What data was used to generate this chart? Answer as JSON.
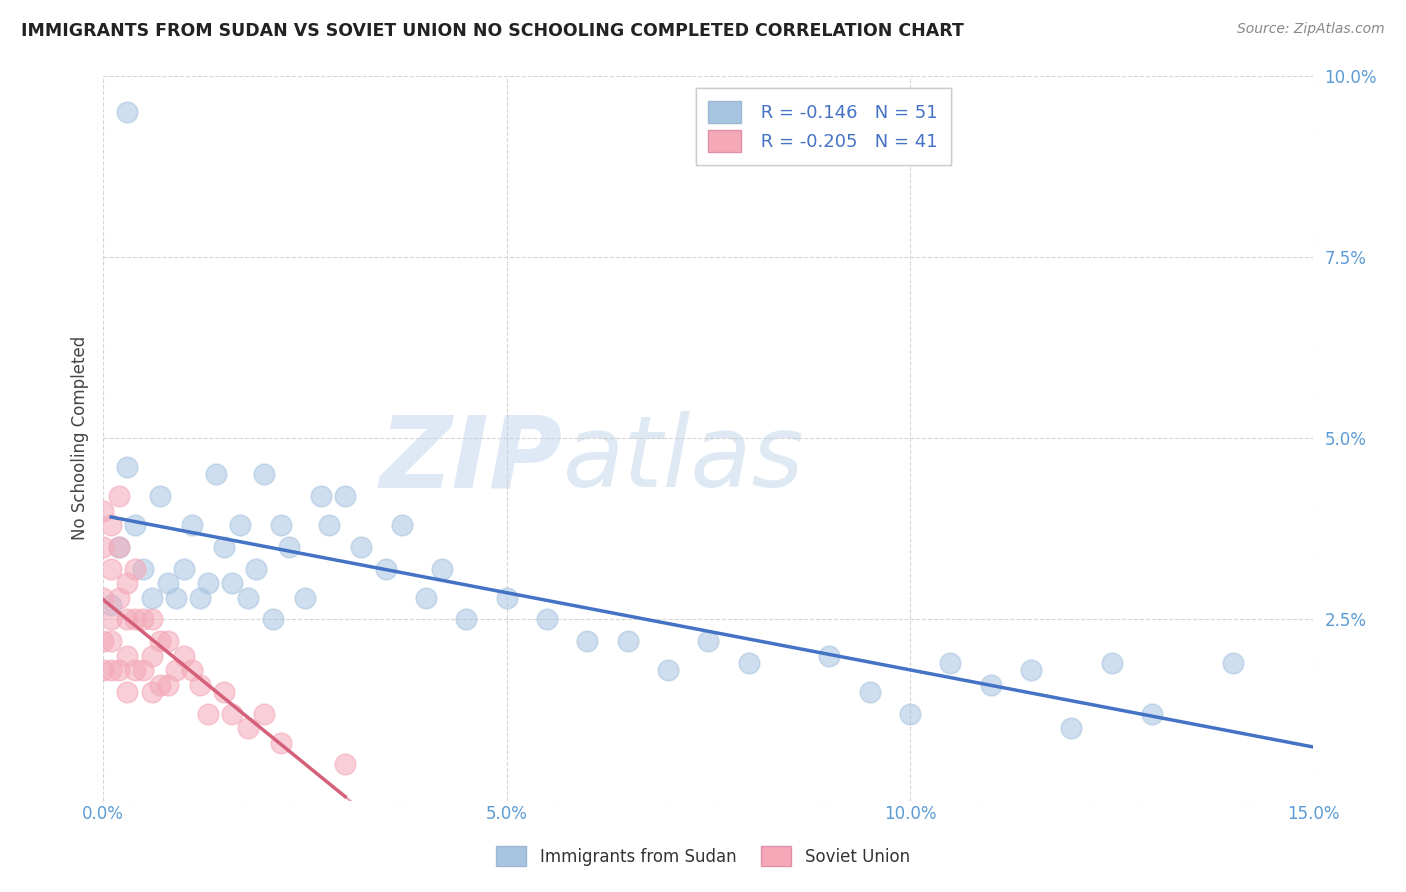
{
  "title": "IMMIGRANTS FROM SUDAN VS SOVIET UNION NO SCHOOLING COMPLETED CORRELATION CHART",
  "source": "Source: ZipAtlas.com",
  "ylabel": "No Schooling Completed",
  "xlim": [
    0.0,
    0.15
  ],
  "ylim": [
    0.0,
    0.1
  ],
  "xticks": [
    0.0,
    0.05,
    0.1,
    0.15
  ],
  "yticks": [
    0.0,
    0.025,
    0.05,
    0.075,
    0.1
  ],
  "ytick_labels": [
    "",
    "2.5%",
    "5.0%",
    "7.5%",
    "10.0%"
  ],
  "xtick_labels": [
    "0.0%",
    "5.0%",
    "10.0%",
    "15.0%"
  ],
  "sudan_R": -0.146,
  "sudan_N": 51,
  "soviet_R": -0.205,
  "soviet_N": 41,
  "sudan_color": "#a8c4e0",
  "soviet_color": "#f4a8b8",
  "sudan_line_color": "#4472c4",
  "soviet_line_color": "#d4607a",
  "sudan_scatter_x": [
    0.001,
    0.002,
    0.003,
    0.004,
    0.005,
    0.006,
    0.007,
    0.008,
    0.009,
    0.01,
    0.011,
    0.012,
    0.013,
    0.014,
    0.015,
    0.016,
    0.017,
    0.018,
    0.019,
    0.02,
    0.021,
    0.022,
    0.023,
    0.025,
    0.027,
    0.028,
    0.03,
    0.032,
    0.035,
    0.037,
    0.04,
    0.042,
    0.045,
    0.05,
    0.055,
    0.06,
    0.065,
    0.07,
    0.075,
    0.08,
    0.09,
    0.095,
    0.1,
    0.105,
    0.11,
    0.115,
    0.12,
    0.125,
    0.13,
    0.14,
    0.003
  ],
  "sudan_scatter_y": [
    0.027,
    0.035,
    0.046,
    0.038,
    0.032,
    0.028,
    0.042,
    0.03,
    0.028,
    0.032,
    0.038,
    0.028,
    0.03,
    0.045,
    0.035,
    0.03,
    0.038,
    0.028,
    0.032,
    0.045,
    0.025,
    0.038,
    0.035,
    0.028,
    0.042,
    0.038,
    0.042,
    0.035,
    0.032,
    0.038,
    0.028,
    0.032,
    0.025,
    0.028,
    0.025,
    0.022,
    0.022,
    0.018,
    0.022,
    0.019,
    0.02,
    0.015,
    0.012,
    0.019,
    0.016,
    0.018,
    0.01,
    0.019,
    0.012,
    0.019,
    0.095
  ],
  "soviet_scatter_x": [
    0.0,
    0.0,
    0.0,
    0.0,
    0.0,
    0.001,
    0.001,
    0.001,
    0.001,
    0.001,
    0.002,
    0.002,
    0.002,
    0.002,
    0.003,
    0.003,
    0.003,
    0.003,
    0.004,
    0.004,
    0.004,
    0.005,
    0.005,
    0.006,
    0.006,
    0.006,
    0.007,
    0.007,
    0.008,
    0.008,
    0.009,
    0.01,
    0.011,
    0.012,
    0.013,
    0.015,
    0.016,
    0.018,
    0.02,
    0.022,
    0.03
  ],
  "soviet_scatter_y": [
    0.04,
    0.035,
    0.028,
    0.022,
    0.018,
    0.038,
    0.032,
    0.025,
    0.022,
    0.018,
    0.042,
    0.035,
    0.028,
    0.018,
    0.03,
    0.025,
    0.02,
    0.015,
    0.032,
    0.025,
    0.018,
    0.025,
    0.018,
    0.025,
    0.02,
    0.015,
    0.022,
    0.016,
    0.022,
    0.016,
    0.018,
    0.02,
    0.018,
    0.016,
    0.012,
    0.015,
    0.012,
    0.01,
    0.012,
    0.008,
    0.005
  ],
  "watermark_zip": "ZIP",
  "watermark_atlas": "atlas",
  "background_color": "#ffffff",
  "grid_color": "#cccccc",
  "tick_color": "#5b9bd5"
}
